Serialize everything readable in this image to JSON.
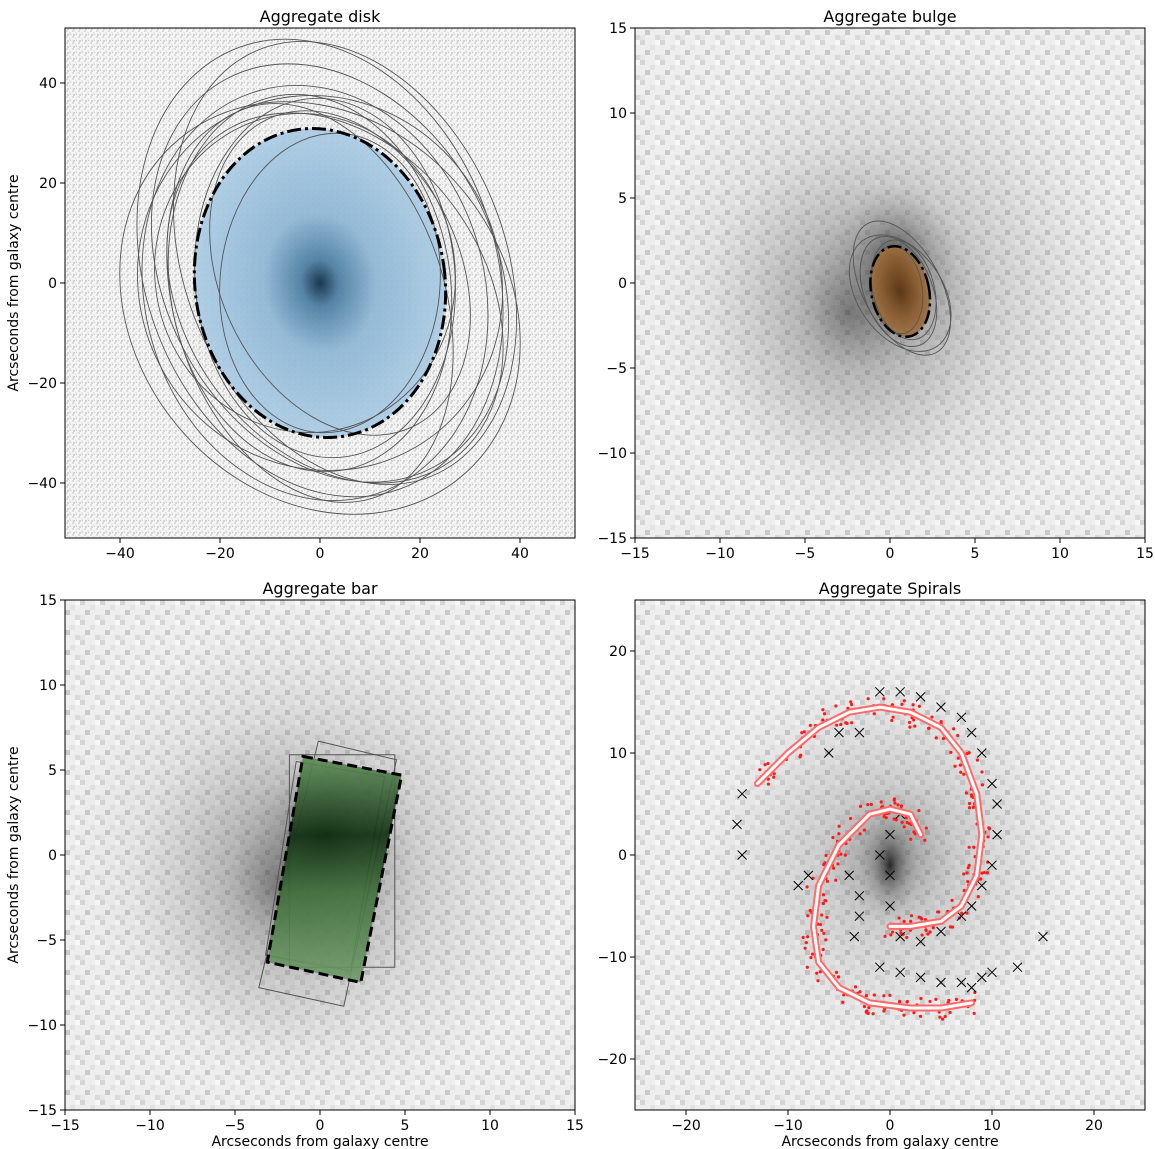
{
  "figure": {
    "panels": [
      {
        "title": "Aggregate disk",
        "xlabel": "",
        "ylabel": "Arcseconds from galaxy centre"
      },
      {
        "title": "Aggregate bulge",
        "xlabel": "",
        "ylabel": ""
      },
      {
        "title": "Aggregate bar",
        "xlabel": "Arcseconds from galaxy centre",
        "ylabel": "Arcseconds from galaxy centre"
      },
      {
        "title": "Aggregate Spirals",
        "xlabel": "Arcseconds from galaxy centre",
        "ylabel": ""
      }
    ]
  },
  "colors": {
    "disk_fill": "#9cc3e0",
    "disk_core": "#0b2a44",
    "bulge_fill": "#8a5a2b",
    "bar_fill": "#4f8a4a",
    "bar_core": "#0f2e10",
    "spiral_points": "#ff1a1a",
    "spiral_arm": "#ff6b6b",
    "contour_line": "#555555",
    "cross_marker": "#000000"
  },
  "chart_data": [
    {
      "type": "scatter",
      "panel": 0,
      "title": "Aggregate disk",
      "xlabel": "",
      "ylabel": "Arcseconds from galaxy centre",
      "xlim": [
        -51,
        51
      ],
      "ylim": [
        -51,
        51
      ],
      "xticks": [
        -40,
        -20,
        0,
        20,
        40
      ],
      "yticks": [
        -40,
        -20,
        0,
        20,
        40
      ],
      "aggregate_ellipse": {
        "cx": 0,
        "cy": 0,
        "rx": 25,
        "ry": 31,
        "angle_deg": -8
      },
      "classifications": [
        {
          "cx": 0,
          "cy": 3,
          "rx": 35,
          "ry": 47,
          "angle_deg": -20
        },
        {
          "cx": 2,
          "cy": 2,
          "rx": 33,
          "ry": 44,
          "angle_deg": -28
        },
        {
          "cx": -2,
          "cy": 0,
          "rx": 28,
          "ry": 38,
          "angle_deg": -10
        },
        {
          "cx": 3,
          "cy": -3,
          "rx": 30,
          "ry": 40,
          "angle_deg": -35
        },
        {
          "cx": -1,
          "cy": -2,
          "rx": 34,
          "ry": 42,
          "angle_deg": -15
        },
        {
          "cx": 1,
          "cy": 1,
          "rx": 26,
          "ry": 36,
          "angle_deg": -5
        },
        {
          "cx": 0,
          "cy": -5,
          "rx": 37,
          "ry": 44,
          "angle_deg": -40
        },
        {
          "cx": 4,
          "cy": 2,
          "rx": 24,
          "ry": 34,
          "angle_deg": -25
        },
        {
          "cx": -3,
          "cy": 2,
          "rx": 30,
          "ry": 32,
          "angle_deg": -12
        },
        {
          "cx": 2,
          "cy": 0,
          "rx": 22,
          "ry": 30,
          "angle_deg": 5
        },
        {
          "cx": 0,
          "cy": 0,
          "rx": 36,
          "ry": 38,
          "angle_deg": -30
        },
        {
          "cx": 5,
          "cy": 4,
          "rx": 32,
          "ry": 46,
          "angle_deg": -22
        },
        {
          "cx": -2,
          "cy": -4,
          "rx": 27,
          "ry": 41,
          "angle_deg": -18
        }
      ]
    },
    {
      "type": "scatter",
      "panel": 1,
      "title": "Aggregate bulge",
      "xlim": [
        -15,
        15
      ],
      "ylim": [
        -15,
        15
      ],
      "xticks": [
        -15,
        -10,
        -5,
        0,
        5,
        10,
        15
      ],
      "yticks": [
        -15,
        -10,
        -5,
        0,
        5,
        10,
        15
      ],
      "aggregate_ellipse": {
        "cx": 0.6,
        "cy": -0.5,
        "rx": 1.7,
        "ry": 2.7,
        "angle_deg": -12
      },
      "classifications": [
        {
          "cx": 0.7,
          "cy": -0.3,
          "rx": 2.3,
          "ry": 4.3,
          "angle_deg": -28
        },
        {
          "cx": 0.5,
          "cy": -0.5,
          "rx": 2.0,
          "ry": 3.4,
          "angle_deg": -22
        },
        {
          "cx": 0.8,
          "cy": -0.4,
          "rx": 1.8,
          "ry": 3.0,
          "angle_deg": -15
        },
        {
          "cx": 0.6,
          "cy": -0.6,
          "rx": 2.5,
          "ry": 3.8,
          "angle_deg": -35
        },
        {
          "cx": 0.4,
          "cy": -0.4,
          "rx": 1.5,
          "ry": 2.6,
          "angle_deg": -8
        }
      ]
    },
    {
      "type": "scatter",
      "panel": 2,
      "title": "Aggregate bar",
      "xlabel": "Arcseconds from galaxy centre",
      "ylabel": "Arcseconds from galaxy centre",
      "xlim": [
        -15,
        15
      ],
      "ylim": [
        -15,
        15
      ],
      "xticks": [
        -15,
        -10,
        -5,
        0,
        5,
        10,
        15
      ],
      "yticks": [
        -15,
        -10,
        -5,
        0,
        5,
        10,
        15
      ],
      "aggregate_box": {
        "corners": [
          [
            -1.0,
            5.8
          ],
          [
            4.8,
            4.7
          ],
          [
            2.4,
            -7.5
          ],
          [
            -3.1,
            -6.3
          ]
        ]
      },
      "classifications": [
        {
          "corners": [
            [
              -1.8,
              5.9
            ],
            [
              4.4,
              5.9
            ],
            [
              4.4,
              -6.6
            ],
            [
              -1.8,
              -6.6
            ]
          ]
        },
        {
          "corners": [
            [
              -0.1,
              6.7
            ],
            [
              4.5,
              5.6
            ],
            [
              1.4,
              -8.9
            ],
            [
              -3.6,
              -7.8
            ]
          ]
        },
        {
          "corners": [
            [
              -1.4,
              5.5
            ],
            [
              3.8,
              4.6
            ],
            [
              1.8,
              -6.8
            ],
            [
              -3.2,
              -5.9
            ]
          ]
        }
      ]
    },
    {
      "type": "scatter",
      "panel": 3,
      "title": "Aggregate Spirals",
      "xlabel": "Arcseconds from galaxy centre",
      "xlim": [
        -25,
        25
      ],
      "ylim": [
        -25,
        25
      ],
      "xticks": [
        -20,
        -10,
        0,
        10,
        20
      ],
      "yticks": [
        -20,
        -10,
        0,
        10,
        20
      ],
      "arms": [
        {
          "x": [
            -13,
            -10,
            -7,
            -4,
            -1,
            2,
            5,
            7,
            8.5,
            9,
            8.5,
            7,
            5,
            2,
            0
          ],
          "y": [
            7,
            10,
            12.5,
            14,
            14.5,
            14,
            12.5,
            10,
            6,
            2,
            -2,
            -5,
            -6.5,
            -7,
            -7
          ]
        },
        {
          "x": [
            3,
            2,
            0,
            -2,
            -5,
            -7,
            -7.5,
            -7,
            -5,
            -2,
            2,
            5,
            8
          ],
          "y": [
            2,
            4,
            4.5,
            4,
            1,
            -3,
            -7,
            -10.5,
            -13,
            -14.5,
            -15,
            -15,
            -14.5
          ]
        }
      ],
      "crosses": [
        [
          -1,
          16
        ],
        [
          1,
          16
        ],
        [
          3,
          15.5
        ],
        [
          5,
          14.5
        ],
        [
          7,
          13.5
        ],
        [
          8,
          12
        ],
        [
          9,
          10
        ],
        [
          10,
          7
        ],
        [
          10.5,
          5
        ],
        [
          10.5,
          2
        ],
        [
          10,
          -1
        ],
        [
          9,
          -3
        ],
        [
          8,
          -5
        ],
        [
          7,
          -6
        ],
        [
          5,
          -7.5
        ],
        [
          -3,
          12
        ],
        [
          -5,
          12
        ],
        [
          -6,
          10
        ],
        [
          -14.5,
          6
        ],
        [
          -15,
          3
        ],
        [
          -14.5,
          0
        ],
        [
          1,
          4
        ],
        [
          0,
          2
        ],
        [
          -1,
          0
        ],
        [
          0,
          -2
        ],
        [
          0,
          -5
        ],
        [
          1,
          -8
        ],
        [
          3,
          -8.5
        ],
        [
          -9,
          -3
        ],
        [
          -8,
          -2
        ],
        [
          -4,
          -2
        ],
        [
          -3,
          -4
        ],
        [
          -3,
          -6
        ],
        [
          -3.5,
          -8
        ],
        [
          -1,
          -11
        ],
        [
          1,
          -11.5
        ],
        [
          3,
          -12
        ],
        [
          5,
          -12.5
        ],
        [
          7,
          -12.5
        ],
        [
          8,
          -13
        ],
        [
          9,
          -12
        ],
        [
          10,
          -11.5
        ],
        [
          12.5,
          -11
        ],
        [
          15,
          -8
        ]
      ]
    }
  ]
}
